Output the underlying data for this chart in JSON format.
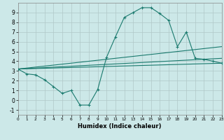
{
  "xlabel": "Humidex (Indice chaleur)",
  "background_color": "#cce8e8",
  "grid_color": "#b0c8c8",
  "line_color": "#1a7a6e",
  "xlim": [
    0,
    23
  ],
  "ylim": [
    -1.5,
    10.0
  ],
  "xticks": [
    0,
    1,
    2,
    3,
    4,
    5,
    6,
    7,
    8,
    9,
    10,
    11,
    12,
    13,
    14,
    15,
    16,
    17,
    18,
    19,
    20,
    21,
    22,
    23
  ],
  "yticks": [
    -1,
    0,
    1,
    2,
    3,
    4,
    5,
    6,
    7,
    8,
    9
  ],
  "line1_x": [
    0,
    1,
    2,
    3,
    4,
    5,
    6,
    7,
    8,
    9,
    10,
    11,
    12,
    13,
    14,
    15,
    16,
    17,
    18,
    19,
    20,
    21,
    22,
    23
  ],
  "line1_y": [
    3.2,
    2.7,
    2.6,
    2.1,
    1.4,
    0.7,
    1.0,
    -0.5,
    -0.5,
    1.1,
    4.4,
    6.5,
    8.5,
    9.0,
    9.5,
    9.5,
    8.9,
    8.2,
    5.5,
    7.0,
    4.3,
    4.2,
    4.0,
    3.8
  ],
  "line2_x": [
    0,
    23
  ],
  "line2_y": [
    3.2,
    5.5
  ],
  "line3_x": [
    0,
    23
  ],
  "line3_y": [
    3.2,
    4.3
  ],
  "line4_x": [
    0,
    23
  ],
  "line4_y": [
    3.2,
    3.8
  ]
}
